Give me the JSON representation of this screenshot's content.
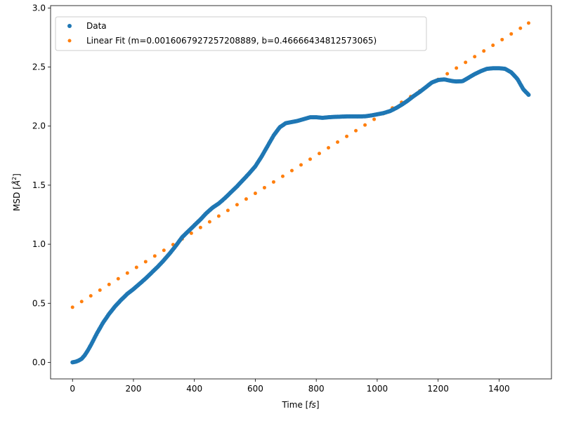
{
  "chart_data": {
    "type": "scatter",
    "title": "",
    "xlabel": "Time [fs]",
    "ylabel": "MSD [Å²]",
    "xlim": [
      -72,
      1572
    ],
    "ylim": [
      -0.14,
      3.02
    ],
    "xticks": [
      0,
      200,
      400,
      600,
      800,
      1000,
      1200,
      1400
    ],
    "xtick_labels": [
      "0",
      "200",
      "400",
      "600",
      "800",
      "1000",
      "1200",
      "1400"
    ],
    "yticks": [
      0.0,
      0.5,
      1.0,
      1.5,
      2.0,
      2.5,
      3.0
    ],
    "ytick_labels": [
      "0.0",
      "0.5",
      "1.0",
      "1.5",
      "2.0",
      "2.5",
      "3.0"
    ],
    "grid": false,
    "legend_position": "top-left",
    "series": [
      {
        "name": "Data",
        "color": "#1f77b4",
        "marker_size": 3.0,
        "sample_step": 3,
        "x_start": 0,
        "x_end": 1497,
        "curve": [
          [
            0,
            0.0
          ],
          [
            10,
            0.005
          ],
          [
            20,
            0.015
          ],
          [
            30,
            0.03
          ],
          [
            40,
            0.06
          ],
          [
            50,
            0.1
          ],
          [
            60,
            0.145
          ],
          [
            70,
            0.195
          ],
          [
            80,
            0.245
          ],
          [
            90,
            0.29
          ],
          [
            100,
            0.335
          ],
          [
            120,
            0.41
          ],
          [
            140,
            0.475
          ],
          [
            160,
            0.53
          ],
          [
            180,
            0.58
          ],
          [
            200,
            0.62
          ],
          [
            220,
            0.665
          ],
          [
            240,
            0.71
          ],
          [
            260,
            0.76
          ],
          [
            280,
            0.81
          ],
          [
            300,
            0.865
          ],
          [
            320,
            0.925
          ],
          [
            340,
            0.99
          ],
          [
            360,
            1.06
          ],
          [
            380,
            1.11
          ],
          [
            400,
            1.16
          ],
          [
            420,
            1.21
          ],
          [
            440,
            1.265
          ],
          [
            460,
            1.31
          ],
          [
            480,
            1.345
          ],
          [
            500,
            1.39
          ],
          [
            520,
            1.44
          ],
          [
            540,
            1.49
          ],
          [
            560,
            1.545
          ],
          [
            580,
            1.6
          ],
          [
            600,
            1.66
          ],
          [
            620,
            1.74
          ],
          [
            640,
            1.83
          ],
          [
            660,
            1.92
          ],
          [
            680,
            1.99
          ],
          [
            700,
            2.025
          ],
          [
            720,
            2.035
          ],
          [
            740,
            2.045
          ],
          [
            760,
            2.06
          ],
          [
            780,
            2.075
          ],
          [
            800,
            2.075
          ],
          [
            820,
            2.07
          ],
          [
            840,
            2.075
          ],
          [
            860,
            2.078
          ],
          [
            880,
            2.08
          ],
          [
            900,
            2.082
          ],
          [
            940,
            2.082
          ],
          [
            960,
            2.083
          ],
          [
            980,
            2.09
          ],
          [
            1000,
            2.1
          ],
          [
            1020,
            2.11
          ],
          [
            1040,
            2.125
          ],
          [
            1060,
            2.15
          ],
          [
            1080,
            2.18
          ],
          [
            1100,
            2.215
          ],
          [
            1120,
            2.255
          ],
          [
            1140,
            2.29
          ],
          [
            1160,
            2.33
          ],
          [
            1180,
            2.37
          ],
          [
            1200,
            2.39
          ],
          [
            1220,
            2.395
          ],
          [
            1240,
            2.385
          ],
          [
            1250,
            2.38
          ],
          [
            1260,
            2.378
          ],
          [
            1280,
            2.38
          ],
          [
            1300,
            2.41
          ],
          [
            1320,
            2.44
          ],
          [
            1340,
            2.465
          ],
          [
            1360,
            2.485
          ],
          [
            1380,
            2.49
          ],
          [
            1400,
            2.49
          ],
          [
            1420,
            2.485
          ],
          [
            1440,
            2.455
          ],
          [
            1460,
            2.4
          ],
          [
            1480,
            2.31
          ],
          [
            1497,
            2.265
          ]
        ]
      },
      {
        "name": "Linear Fit (m=0.0016067927257208889, b=0.46666434812573065)",
        "color": "#ff7f0e",
        "marker_size": 2.5,
        "slope": 0.0016067927257208889,
        "intercept": 0.46666434812573065,
        "x": [
          0,
          30,
          60,
          90,
          120,
          150,
          180,
          210,
          240,
          270,
          300,
          330,
          360,
          390,
          420,
          450,
          480,
          510,
          540,
          570,
          600,
          630,
          660,
          690,
          720,
          750,
          780,
          810,
          840,
          870,
          900,
          930,
          960,
          990,
          1020,
          1050,
          1080,
          1110,
          1140,
          1170,
          1200,
          1230,
          1260,
          1290,
          1320,
          1350,
          1380,
          1410,
          1440,
          1470,
          1497
        ]
      }
    ]
  }
}
